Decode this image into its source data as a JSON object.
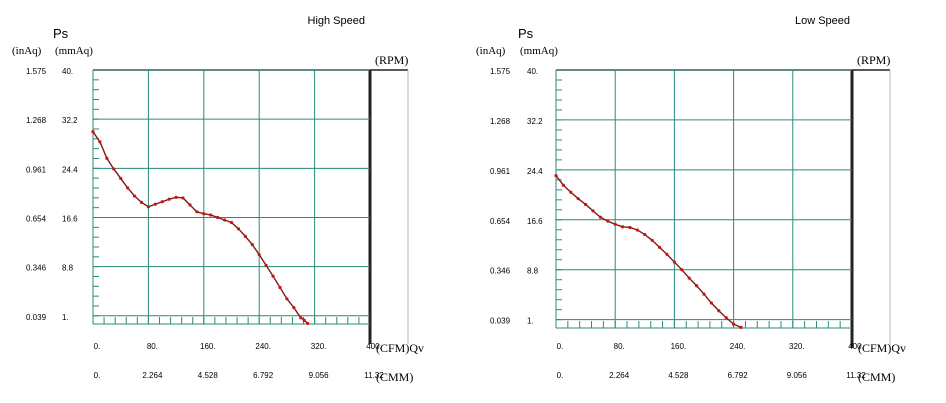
{
  "chart_data": [
    {
      "type": "line",
      "title": "High Speed",
      "y_label": "Ps",
      "y_unit_left": "(inAq)",
      "y_unit_right": "(mmAq)",
      "rpm_label": "(RPM)",
      "x_label_cfm": "(CFM)Qv",
      "x_label_cmm": "(CMM)",
      "y_ticks_inaq": [
        "1.575",
        "1.268",
        "0.961",
        "0.654",
        "0.346",
        "0.039"
      ],
      "y_ticks_mmaq": [
        "40.",
        "32.2",
        "24.4",
        "16.6",
        "8.8",
        "1."
      ],
      "y_tick_values": [
        40,
        32.2,
        24.4,
        16.6,
        8.8,
        1
      ],
      "x_ticks_cfm": [
        "0.",
        "80.",
        "160.",
        "240.",
        "320.",
        "400."
      ],
      "x_ticks_cmm": [
        "0.",
        "2.264",
        "4.528",
        "6.792",
        "9.056",
        "11.32"
      ],
      "x_tick_values": [
        0,
        80,
        160,
        240,
        320,
        400
      ],
      "xlim": [
        0,
        400
      ],
      "ylim": [
        -0.3,
        40
      ],
      "grid": true,
      "line_color": "#7a1a1a",
      "marker_color": "#c81414",
      "grid_color": "#2a8a7a",
      "x": [
        0,
        10,
        20,
        30,
        40,
        50,
        60,
        70,
        80,
        90,
        100,
        110,
        120,
        130,
        140,
        150,
        160,
        170,
        180,
        190,
        200,
        210,
        220,
        230,
        240,
        250,
        260,
        270,
        280,
        290,
        300,
        305,
        310
      ],
      "y": [
        30.2,
        28.6,
        26.0,
        24.3,
        22.8,
        21.3,
        20.0,
        19.0,
        18.3,
        18.7,
        19.1,
        19.5,
        19.8,
        19.7,
        18.6,
        17.5,
        17.2,
        17.0,
        16.6,
        16.2,
        15.8,
        14.8,
        13.6,
        12.3,
        10.7,
        9.0,
        7.3,
        5.5,
        3.7,
        2.3,
        0.7,
        0.3,
        -0.2
      ]
    },
    {
      "type": "line",
      "title": "Low Speed",
      "y_label": "Ps",
      "y_unit_left": "(inAq)",
      "y_unit_right": "(mmAq)",
      "rpm_label": "(RPM)",
      "x_label_cfm": "(CFM)Qv",
      "x_label_cmm": "(CMM)",
      "y_ticks_inaq": [
        "1.575",
        "1.268",
        "0.961",
        "0.654",
        "0.346",
        "0.039"
      ],
      "y_ticks_mmaq": [
        "40.",
        "32.2",
        "24.4",
        "16.6",
        "8.8",
        "1."
      ],
      "y_tick_values": [
        40,
        32.2,
        24.4,
        16.6,
        8.8,
        1
      ],
      "x_ticks_cfm": [
        "0.",
        "80.",
        "160.",
        "240.",
        "320.",
        "400."
      ],
      "x_ticks_cmm": [
        "0.",
        "2.264",
        "4.528",
        "6.792",
        "9.056",
        "11.32"
      ],
      "x_tick_values": [
        0,
        80,
        160,
        240,
        320,
        400
      ],
      "xlim": [
        0,
        400
      ],
      "ylim": [
        -0.3,
        40
      ],
      "grid": true,
      "line_color": "#7a1a1a",
      "marker_color": "#c81414",
      "grid_color": "#2a8a7a",
      "x": [
        0,
        10,
        20,
        30,
        40,
        50,
        60,
        70,
        80,
        90,
        100,
        110,
        120,
        130,
        140,
        150,
        160,
        170,
        180,
        190,
        200,
        210,
        220,
        230,
        240,
        250
      ],
      "y": [
        23.5,
        22.0,
        20.9,
        19.9,
        19.0,
        18.0,
        17.0,
        16.4,
        15.9,
        15.5,
        15.4,
        15.0,
        14.3,
        13.4,
        12.3,
        11.2,
        10.0,
        8.8,
        7.5,
        6.3,
        5.0,
        3.6,
        2.4,
        1.3,
        0.3,
        -0.2
      ]
    }
  ]
}
